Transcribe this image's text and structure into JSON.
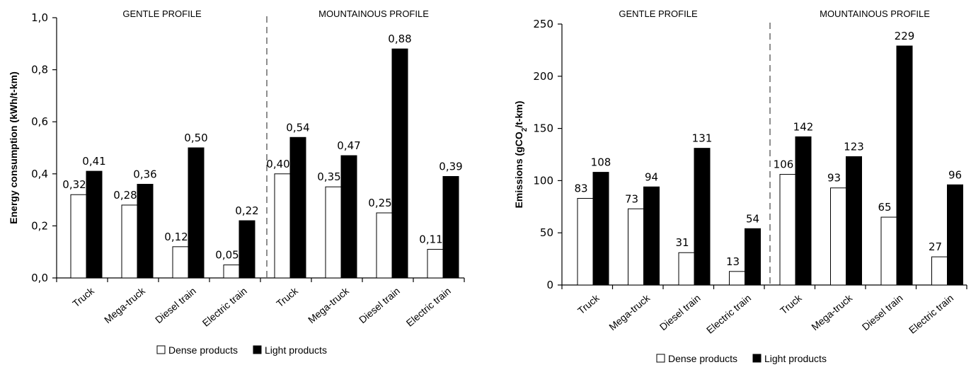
{
  "legend": {
    "dense": "Dense products",
    "light": "Light products"
  },
  "colors": {
    "dense_fill": "#ffffff",
    "light_fill": "#000000",
    "stroke": "#000000"
  },
  "chart_data": [
    {
      "type": "bar",
      "ylabel": "Energy consumption  (kWh/t-km)",
      "ylim": [
        0,
        1.0
      ],
      "yticks": [
        "0,0",
        "0,2",
        "0,4",
        "0,6",
        "0,8",
        "1,0"
      ],
      "tick_values": [
        0,
        0.2,
        0.4,
        0.6,
        0.8,
        1.0
      ],
      "groups": [
        "GENTLE PROFILE",
        "MOUNTAINOUS PROFILE"
      ],
      "categories": [
        "Truck",
        "Mega-truck",
        "Diesel train",
        "Electric train",
        "Truck",
        "Mega-truck",
        "Diesel train",
        "Electric train"
      ],
      "series": [
        {
          "name": "Dense products",
          "values": [
            0.32,
            0.28,
            0.12,
            0.05,
            0.4,
            0.35,
            0.25,
            0.11
          ],
          "labels": [
            "0,32",
            "0,28",
            "0,12",
            "0,05",
            "0,40",
            "0,35",
            "0,25",
            "0,11"
          ]
        },
        {
          "name": "Light products",
          "values": [
            0.41,
            0.36,
            0.5,
            0.22,
            0.54,
            0.47,
            0.88,
            0.39
          ],
          "labels": [
            "0,41",
            "0,36",
            "0,50",
            "0,22",
            "0,54",
            "0,47",
            "0,88",
            "0,39"
          ]
        }
      ],
      "legend_position": "bottom"
    },
    {
      "type": "bar",
      "ylabel": "Emissions  (gCO2/t-km)",
      "ylabel_parts": [
        "Emissions  (gCO",
        "2",
        "/t-km)"
      ],
      "ylim": [
        0,
        250
      ],
      "yticks": [
        "0",
        "50",
        "100",
        "150",
        "200",
        "250"
      ],
      "tick_values": [
        0,
        50,
        100,
        150,
        200,
        250
      ],
      "groups": [
        "GENTLE PROFILE",
        "MOUNTAINOUS PROFILE"
      ],
      "categories": [
        "Truck",
        "Mega-truck",
        "Diesel train",
        "Electric train",
        "Truck",
        "Mega-truck",
        "Diesel train",
        "Electric train"
      ],
      "series": [
        {
          "name": "Dense products",
          "values": [
            83,
            73,
            31,
            13,
            106,
            93,
            65,
            27
          ],
          "labels": [
            "83",
            "73",
            "31",
            "13",
            "106",
            "93",
            "65",
            "27"
          ]
        },
        {
          "name": "Light products",
          "values": [
            108,
            94,
            131,
            54,
            142,
            123,
            229,
            96
          ],
          "labels": [
            "108",
            "94",
            "131",
            "54",
            "142",
            "123",
            "229",
            "96"
          ]
        }
      ],
      "legend_position": "bottom"
    }
  ]
}
